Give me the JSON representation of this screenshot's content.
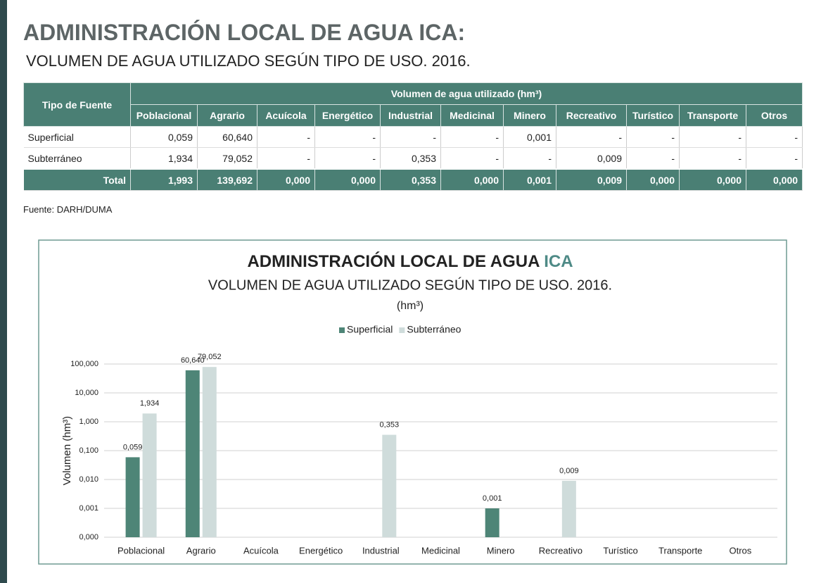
{
  "header": {
    "title": "ADMINISTRACIÓN LOCAL DE AGUA ICA:",
    "subtitle": "VOLUMEN DE AGUA UTILIZADO SEGÚN TIPO DE USO. 2016."
  },
  "table": {
    "first_header": "Tipo de Fuente",
    "group_header": "Volumen de agua utilizado (hm³)",
    "columns": [
      "Poblacional",
      "Agrario",
      "Acuícola",
      "Energético",
      "Industrial",
      "Medicinal",
      "Minero",
      "Recreativo",
      "Turístico",
      "Transporte",
      "Otros"
    ],
    "rows": [
      {
        "label": "Superficial",
        "cells": [
          "0,059",
          "60,640",
          "-",
          "-",
          "-",
          "-",
          "0,001",
          "-",
          "-",
          "-",
          "-"
        ]
      },
      {
        "label": "Subterráneo",
        "cells": [
          "1,934",
          "79,052",
          "-",
          "-",
          "0,353",
          "-",
          "-",
          "0,009",
          "-",
          "-",
          "-"
        ]
      }
    ],
    "total": {
      "label": "Total",
      "cells": [
        "1,993",
        "139,692",
        "0,000",
        "0,000",
        "0,353",
        "0,000",
        "0,001",
        "0,009",
        "0,000",
        "0,000",
        "0,000"
      ]
    }
  },
  "source": "Fuente: DARH/DUMA",
  "chart_data": {
    "type": "bar",
    "title": "ADMINISTRACIÓN LOCAL DE AGUA",
    "title_highlight": "ICA",
    "subtitle": "VOLUMEN DE AGUA UTILIZADO SEGÚN TIPO DE USO. 2016.",
    "unit": "(hm³)",
    "y_label": "Volumen (hm³)",
    "log_scale": true,
    "grid": true,
    "categories": [
      "Poblacional",
      "Agrario",
      "Acuícola",
      "Energético",
      "Industrial",
      "Medicinal",
      "Minero",
      "Recreativo",
      "Turístico",
      "Transporte",
      "Otros"
    ],
    "series": [
      {
        "name": "Superficial",
        "color": "#4e8577",
        "values": [
          0.059,
          60.64,
          null,
          null,
          null,
          null,
          0.001,
          null,
          null,
          null,
          null
        ],
        "value_labels": [
          "0,059",
          "60,640",
          null,
          null,
          null,
          null,
          "0,001",
          null,
          null,
          null,
          null
        ]
      },
      {
        "name": "Subterráneo",
        "color": "#cfdcdb",
        "values": [
          1.934,
          79.052,
          null,
          null,
          0.353,
          null,
          null,
          0.009,
          null,
          null,
          null
        ],
        "value_labels": [
          "1,934",
          "79,052",
          null,
          null,
          "0,353",
          null,
          null,
          "0,009",
          null,
          null,
          null
        ]
      }
    ],
    "ylim": [
      0.0001,
      100
    ],
    "yticks": [
      {
        "value": 0.0001,
        "label": "0,000"
      },
      {
        "value": 0.001,
        "label": "0,001"
      },
      {
        "value": 0.01,
        "label": "0,010"
      },
      {
        "value": 0.1,
        "label": "0,100"
      },
      {
        "value": 1,
        "label": "1,000"
      },
      {
        "value": 10,
        "label": "10,000"
      },
      {
        "value": 100,
        "label": "100,000"
      }
    ]
  }
}
